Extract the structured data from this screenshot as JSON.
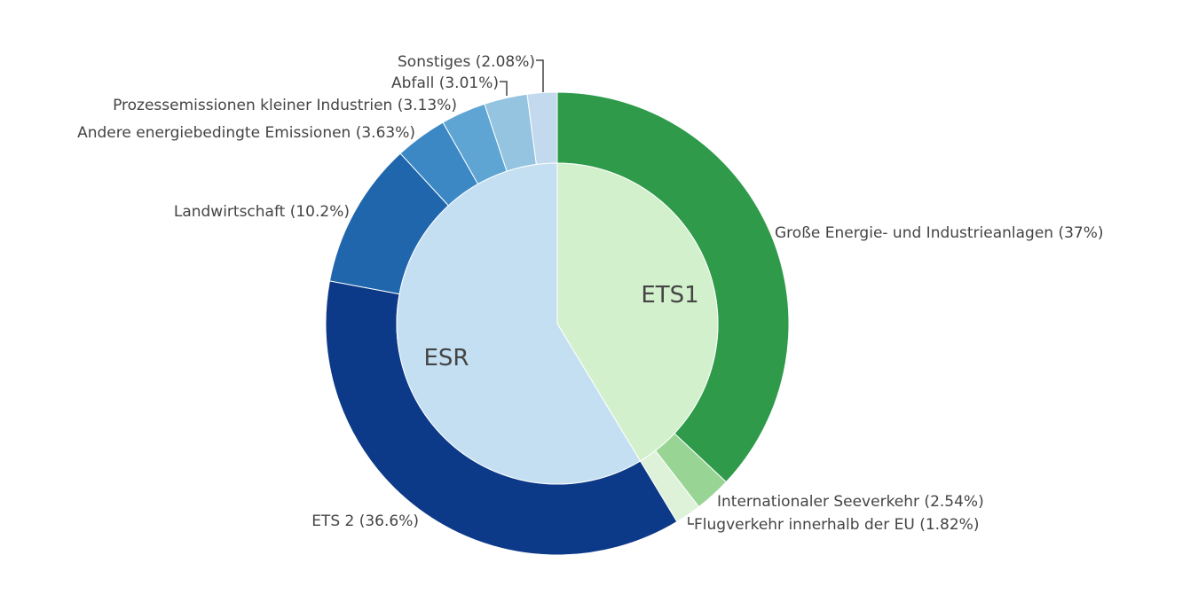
{
  "chart_data": {
    "type": "sunburst",
    "inner": [
      {
        "name": "ETS1",
        "color": "#d2f0cc",
        "label_visible": true
      },
      {
        "name": "ESR",
        "color": "#c4dff2",
        "label_visible": true
      }
    ],
    "outer": [
      {
        "label": "Große Energie- und Industrieanlagen (37%)",
        "value": 37,
        "parent": "ETS1",
        "color": "#2e9a4a"
      },
      {
        "label": "Internationaler Seeverkehr (2.54%)",
        "value": 2.54,
        "parent": "ETS1",
        "color": "#98d493"
      },
      {
        "label": "Flugverkehr innerhalb der EU (1.82%)",
        "value": 1.82,
        "parent": "ETS1",
        "color": "#def2d9"
      },
      {
        "label": "ETS 2 (36.6%)",
        "value": 36.6,
        "parent": "ESR",
        "color": "#0c3988"
      },
      {
        "label": "Landwirtschaft (10.2%)",
        "value": 10.2,
        "parent": "ESR",
        "color": "#1f66ad"
      },
      {
        "label": "Andere energiebedingte Emissionen (3.63%)",
        "value": 3.63,
        "parent": "ESR",
        "color": "#3b88c4"
      },
      {
        "label": "Prozessemissionen kleiner Industrien (3.13%)",
        "value": 3.13,
        "parent": "ESR",
        "color": "#5fa5d4"
      },
      {
        "label": "Abfall (3.01%)",
        "value": 3.01,
        "parent": "ESR",
        "color": "#95c4e1"
      },
      {
        "label": "Sonstiges (2.08%)",
        "value": 2.08,
        "parent": "ESR",
        "color": "#c2d9ee"
      }
    ]
  }
}
